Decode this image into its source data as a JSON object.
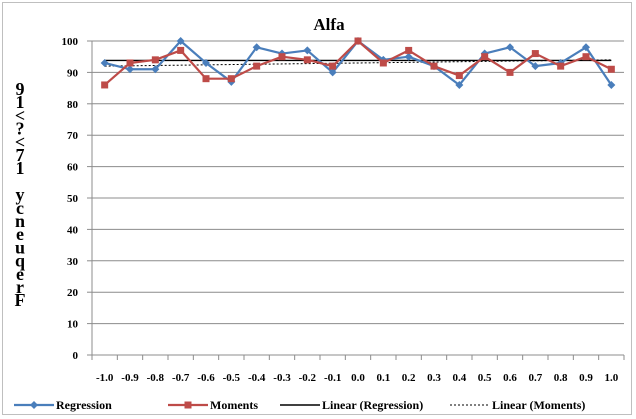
{
  "chart_data": {
    "type": "line",
    "title": "Alfa",
    "ylabel_glyphs": [
      "9",
      "1",
      "<",
      "?",
      "<",
      "7",
      "1",
      "",
      "y",
      "c",
      "n",
      "e",
      "u",
      "q",
      "e",
      "r",
      "F"
    ],
    "xlabel": "",
    "categories": [
      "-1.0",
      "-0.9",
      "-0.8",
      "-0.7",
      "-0.6",
      "-0.5",
      "-0.4",
      "-0.3",
      "-0.2",
      "-0.1",
      "0.0",
      "0.1",
      "0.2",
      "0.3",
      "0.4",
      "0.5",
      "0.6",
      "0.7",
      "0.8",
      "0.9",
      "1.0"
    ],
    "ylim": [
      0,
      100
    ],
    "yticks": [
      0,
      10,
      20,
      30,
      40,
      50,
      60,
      70,
      80,
      90,
      100
    ],
    "grid": true,
    "legend_position": "bottom",
    "series": [
      {
        "name": "Regression",
        "color": "#4a7ebb",
        "marker": "diamond",
        "values": [
          93,
          91,
          91,
          100,
          93,
          87,
          98,
          96,
          97,
          90,
          100,
          94,
          95,
          92,
          86,
          96,
          98,
          92,
          93,
          98,
          86
        ]
      },
      {
        "name": "Moments",
        "color": "#be4b48",
        "marker": "square",
        "values": [
          86,
          93,
          94,
          97,
          88,
          88,
          92,
          95,
          94,
          92,
          100,
          93,
          97,
          92,
          89,
          95,
          90,
          96,
          92,
          95,
          91
        ]
      }
    ],
    "trendlines": [
      {
        "name": "Linear (Regression)",
        "style": "solid",
        "color": "#000000",
        "start": 93.8,
        "end": 93.8
      },
      {
        "name": "Linear (Moments)",
        "style": "dashed",
        "color": "#000000",
        "start": 92.0,
        "end": 94.0
      }
    ]
  }
}
